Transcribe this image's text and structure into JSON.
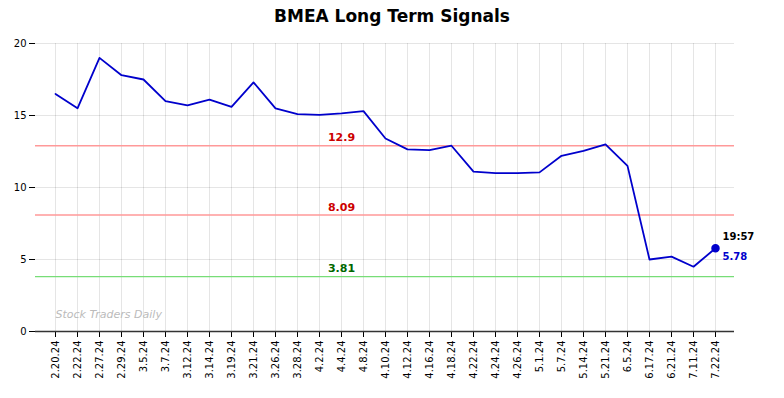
{
  "chart_data": {
    "type": "line",
    "title": "BMEA Long Term Signals",
    "categories": [
      "2.20.24",
      "2.22.24",
      "2.27.24",
      "2.29.24",
      "3.5.24",
      "3.7.24",
      "3.12.24",
      "3.14.24",
      "3.19.24",
      "3.21.24",
      "3.26.24",
      "3.28.24",
      "4.2.24",
      "4.4.24",
      "4.8.24",
      "4.10.24",
      "4.12.24",
      "4.16.24",
      "4.18.24",
      "4.22.24",
      "4.24.24",
      "4.26.24",
      "5.1.24",
      "5.7.24",
      "5.14.24",
      "5.21.24",
      "6.5.24",
      "6.17.24",
      "6.21.24",
      "7.11.24",
      "7.22.24"
    ],
    "values": [
      16.5,
      15.5,
      19.0,
      17.8,
      17.5,
      16.0,
      15.7,
      16.1,
      15.6,
      17.3,
      15.5,
      15.1,
      15.05,
      15.15,
      15.3,
      13.4,
      12.65,
      12.6,
      12.9,
      11.1,
      11.0,
      11.0,
      11.05,
      12.2,
      12.55,
      13.0,
      11.5,
      5.0,
      5.2,
      4.5,
      5.78
    ],
    "color": "#0000cc",
    "marker": "circle",
    "ylim": [
      0,
      20
    ],
    "yticks": [
      0,
      5,
      10,
      15,
      20
    ],
    "grid": true,
    "hlines": [
      {
        "value": 12.9,
        "label": "12.9",
        "color": "#ff9999",
        "label_color": "#cc0000"
      },
      {
        "value": 8.09,
        "label": "8.09",
        "color": "#ff9999",
        "label_color": "#cc0000"
      },
      {
        "value": 3.81,
        "label": "3.81",
        "color": "#77dd77",
        "label_color": "#006600"
      }
    ],
    "annotations": [
      {
        "text": "19:57",
        "color": "#000000"
      },
      {
        "text": "5.78",
        "color": "#0000cc"
      }
    ],
    "watermark": "Stock Traders Daily"
  }
}
